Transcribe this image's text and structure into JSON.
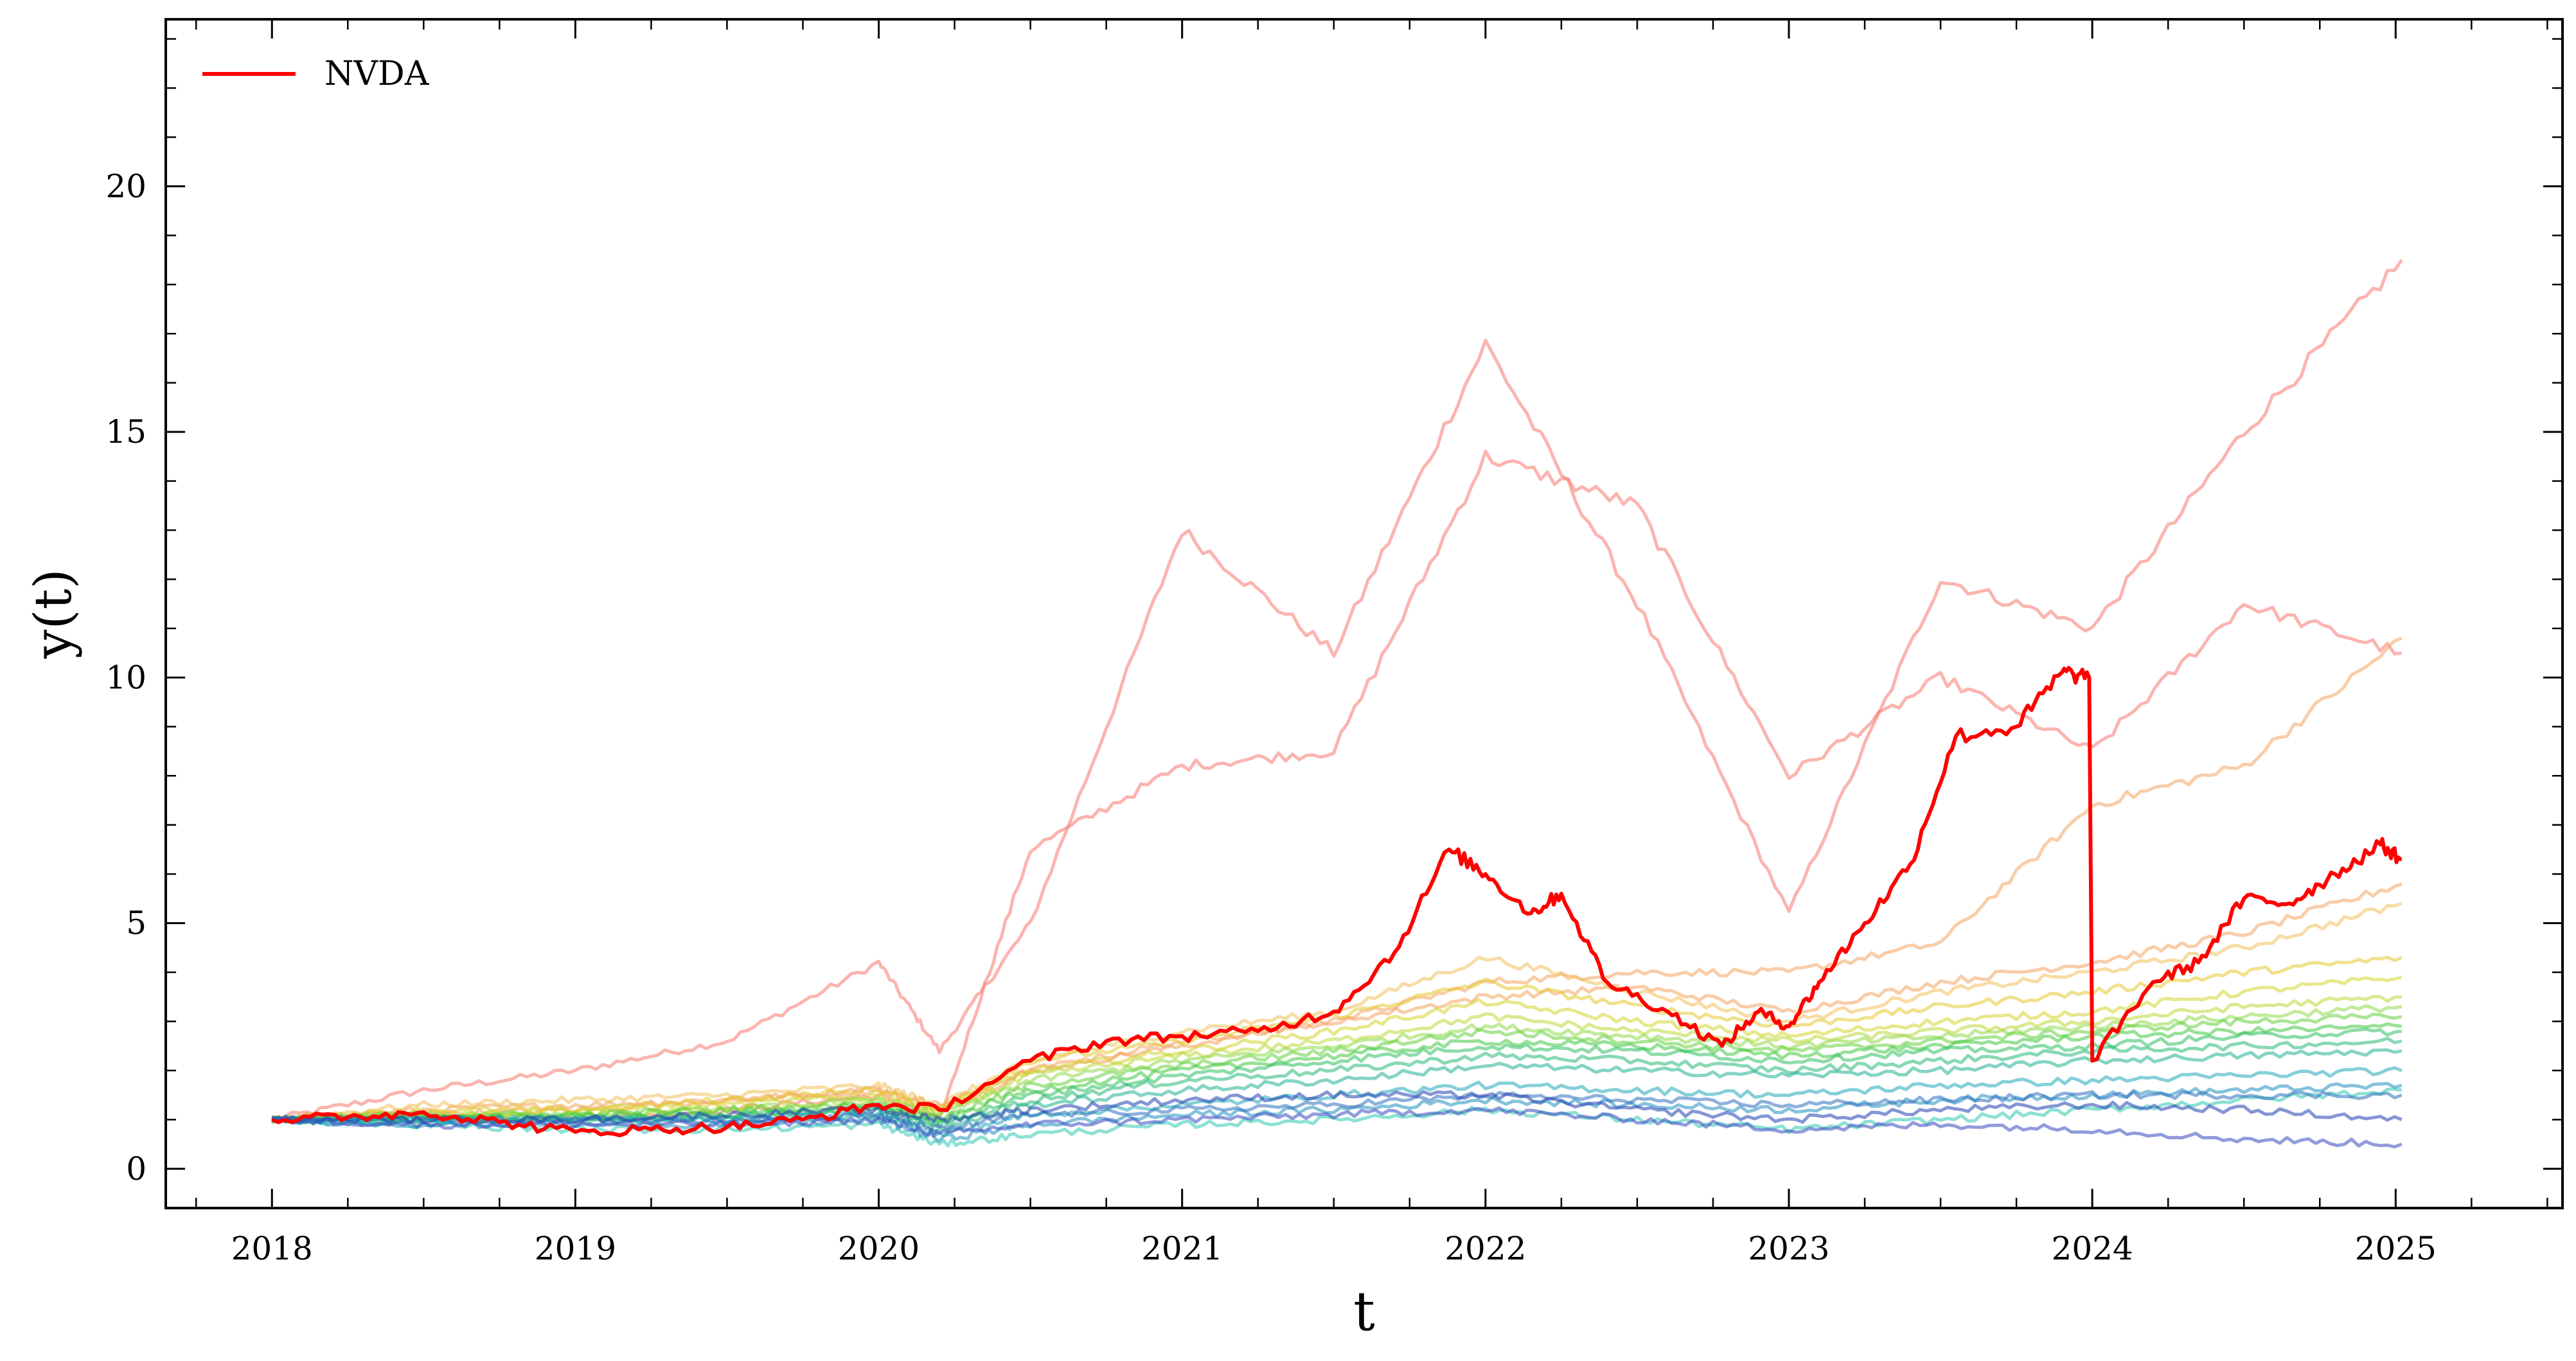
{
  "chart_data": {
    "type": "line",
    "title": "",
    "xlabel": "t",
    "ylabel": "y(t)",
    "xlim": [
      2017.65,
      2025.55
    ],
    "ylim": [
      -0.8,
      23.4
    ],
    "x_ticks": [
      2018,
      2019,
      2020,
      2021,
      2022,
      2023,
      2024,
      2025
    ],
    "x_tick_labels": [
      "2018",
      "2019",
      "2020",
      "2021",
      "2022",
      "2023",
      "2024",
      "2025"
    ],
    "y_ticks": [
      0,
      5,
      10,
      15,
      20
    ],
    "y_tick_labels": [
      "0",
      "5",
      "10",
      "15",
      "20"
    ],
    "grid": false,
    "legend": {
      "position": "top-left",
      "entries": [
        {
          "label": "NVDA",
          "color": "#ff0000"
        }
      ]
    },
    "highlight": {
      "name": "NVDA",
      "color": "#ff0000",
      "points": [
        [
          2018.0,
          1.0
        ],
        [
          2018.25,
          1.05
        ],
        [
          2018.5,
          1.15
        ],
        [
          2018.75,
          0.95
        ],
        [
          2019.0,
          0.75
        ],
        [
          2019.25,
          0.8
        ],
        [
          2019.5,
          0.85
        ],
        [
          2019.75,
          1.0
        ],
        [
          2020.0,
          1.3
        ],
        [
          2020.2,
          1.2
        ],
        [
          2020.5,
          2.2
        ],
        [
          2020.75,
          2.6
        ],
        [
          2021.0,
          2.7
        ],
        [
          2021.25,
          2.8
        ],
        [
          2021.5,
          3.2
        ],
        [
          2021.7,
          4.4
        ],
        [
          2021.88,
          6.5
        ],
        [
          2022.0,
          6.0
        ],
        [
          2022.15,
          5.2
        ],
        [
          2022.25,
          5.6
        ],
        [
          2022.4,
          3.8
        ],
        [
          2022.6,
          3.2
        ],
        [
          2022.78,
          2.5
        ],
        [
          2022.9,
          3.2
        ],
        [
          2023.0,
          2.9
        ],
        [
          2023.1,
          3.8
        ],
        [
          2023.25,
          5.0
        ],
        [
          2023.4,
          6.2
        ],
        [
          2023.55,
          8.8
        ],
        [
          2023.75,
          9.0
        ],
        [
          2023.9,
          10.1
        ],
        [
          2023.99,
          10.0
        ],
        [
          2024.0,
          2.2
        ],
        [
          2024.2,
          3.8
        ],
        [
          2024.35,
          4.2
        ],
        [
          2024.5,
          5.5
        ],
        [
          2024.65,
          5.4
        ],
        [
          2024.8,
          6.0
        ],
        [
          2024.95,
          6.6
        ],
        [
          2025.02,
          6.3
        ]
      ]
    },
    "series_anchor_x": [
      2018.0,
      2018.5,
      2019.0,
      2019.5,
      2020.0,
      2020.2,
      2020.5,
      2021.0,
      2021.5,
      2022.0,
      2022.5,
      2023.0,
      2023.5,
      2024.0,
      2024.5,
      2025.02
    ],
    "series": [
      {
        "color": "#f8766d",
        "values": [
          1.0,
          1.6,
          2.0,
          2.6,
          4.2,
          2.4,
          5.0,
          13.0,
          10.5,
          16.8,
          11.5,
          5.2,
          12.0,
          11.0,
          15.0,
          18.5
        ]
      },
      {
        "color": "#f8766d",
        "values": [
          1.0,
          1.1,
          1.0,
          1.2,
          1.5,
          1.0,
          6.5,
          8.2,
          8.5,
          14.5,
          13.5,
          8.0,
          10.0,
          8.5,
          11.5,
          10.5
        ]
      },
      {
        "color": "#f4a460",
        "values": [
          1.0,
          1.2,
          1.3,
          1.4,
          1.6,
          1.2,
          2.0,
          2.5,
          3.0,
          3.8,
          4.0,
          4.0,
          4.6,
          7.4,
          8.2,
          10.8
        ]
      },
      {
        "color": "#f4a460",
        "values": [
          1.0,
          1.1,
          1.2,
          1.4,
          1.6,
          1.3,
          2.0,
          2.6,
          3.0,
          3.5,
          3.7,
          3.2,
          3.8,
          4.2,
          4.8,
          5.8
        ]
      },
      {
        "color": "#f0c05a",
        "values": [
          1.0,
          1.3,
          1.4,
          1.5,
          1.7,
          1.3,
          2.2,
          2.8,
          3.2,
          4.3,
          3.6,
          3.0,
          3.6,
          4.0,
          4.5,
          5.4
        ]
      },
      {
        "color": "#e6c830",
        "values": [
          1.0,
          1.2,
          1.2,
          1.4,
          1.6,
          1.2,
          2.2,
          2.6,
          3.1,
          3.8,
          3.3,
          2.9,
          3.3,
          3.6,
          4.0,
          4.3
        ]
      },
      {
        "color": "#d4d430",
        "values": [
          1.0,
          1.1,
          1.2,
          1.3,
          1.5,
          1.2,
          2.0,
          2.4,
          2.8,
          3.4,
          3.0,
          2.7,
          3.0,
          3.2,
          3.6,
          3.9
        ]
      },
      {
        "color": "#bcd838",
        "values": [
          1.0,
          1.1,
          1.1,
          1.2,
          1.4,
          1.1,
          1.9,
          2.3,
          2.6,
          3.1,
          2.8,
          2.6,
          2.8,
          3.0,
          3.3,
          3.5
        ]
      },
      {
        "color": "#90d848",
        "values": [
          1.0,
          1.1,
          1.1,
          1.2,
          1.4,
          1.1,
          1.8,
          2.2,
          2.5,
          2.9,
          2.7,
          2.5,
          2.7,
          2.9,
          3.1,
          3.3
        ]
      },
      {
        "color": "#66d040",
        "values": [
          1.0,
          1.1,
          1.1,
          1.2,
          1.3,
          1.0,
          1.7,
          2.1,
          2.4,
          2.8,
          2.6,
          2.4,
          2.6,
          2.8,
          3.0,
          3.1
        ]
      },
      {
        "color": "#44c844",
        "values": [
          1.0,
          1.0,
          1.1,
          1.1,
          1.3,
          1.0,
          1.6,
          2.0,
          2.3,
          2.6,
          2.5,
          2.3,
          2.5,
          2.7,
          2.8,
          2.9
        ]
      },
      {
        "color": "#30c060",
        "values": [
          1.0,
          1.0,
          1.0,
          1.1,
          1.2,
          0.9,
          1.5,
          1.9,
          2.2,
          2.5,
          2.4,
          2.2,
          2.4,
          2.5,
          2.7,
          2.8
        ]
      },
      {
        "color": "#28b878",
        "values": [
          1.0,
          1.0,
          1.0,
          1.1,
          1.2,
          0.9,
          1.4,
          1.8,
          2.0,
          2.3,
          2.2,
          2.0,
          2.2,
          2.4,
          2.5,
          2.6
        ]
      },
      {
        "color": "#20b090",
        "values": [
          1.0,
          1.0,
          1.0,
          1.0,
          1.1,
          0.8,
          1.3,
          1.6,
          1.8,
          2.1,
          2.0,
          1.9,
          2.0,
          2.2,
          2.3,
          2.4
        ]
      },
      {
        "color": "#30c8b0",
        "values": [
          1.0,
          0.9,
          0.8,
          0.8,
          0.9,
          0.5,
          0.7,
          0.9,
          1.0,
          1.2,
          1.0,
          0.8,
          1.0,
          1.2,
          1.4,
          1.6
        ]
      },
      {
        "color": "#20a8b8",
        "values": [
          1.0,
          1.0,
          1.0,
          1.0,
          1.1,
          0.7,
          1.1,
          1.3,
          1.5,
          1.7,
          1.6,
          1.5,
          1.7,
          1.8,
          1.9,
          2.0
        ]
      },
      {
        "color": "#2090c0",
        "values": [
          1.0,
          0.9,
          0.9,
          0.9,
          1.0,
          0.6,
          0.9,
          1.1,
          1.2,
          1.4,
          1.3,
          1.2,
          1.4,
          1.5,
          1.6,
          1.7
        ]
      },
      {
        "color": "#3070c0",
        "values": [
          1.0,
          1.0,
          1.0,
          1.0,
          1.1,
          0.8,
          1.1,
          1.2,
          1.3,
          1.5,
          1.4,
          1.3,
          1.4,
          1.5,
          1.5,
          1.5
        ]
      },
      {
        "color": "#2040b0",
        "values": [
          1.0,
          1.0,
          1.0,
          1.1,
          1.2,
          1.0,
          1.2,
          1.4,
          1.5,
          1.5,
          1.2,
          1.0,
          1.2,
          1.3,
          1.2,
          1.0
        ]
      },
      {
        "color": "#3848c0",
        "values": [
          1.0,
          0.9,
          0.9,
          0.9,
          1.0,
          0.7,
          0.9,
          1.0,
          1.1,
          1.2,
          1.0,
          0.8,
          0.9,
          0.8,
          0.6,
          0.5
        ]
      }
    ]
  }
}
